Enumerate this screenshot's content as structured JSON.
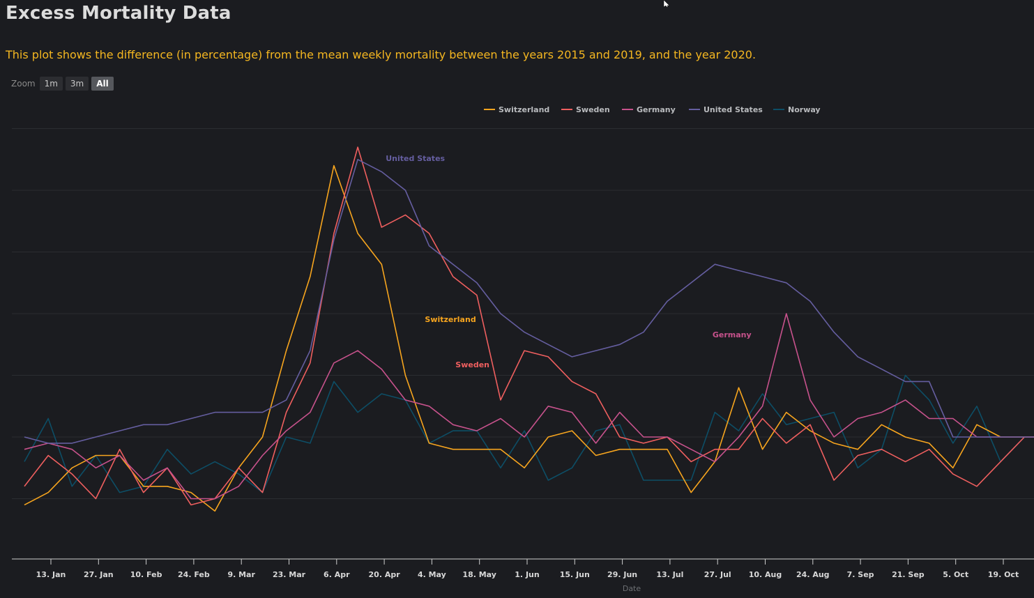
{
  "header": {
    "title": "Excess Mortality Data",
    "subtitle": "This plot shows the difference (in percentage) from the mean weekly mortality between the years 2015 and 2019, and the year 2020."
  },
  "zoom": {
    "label": "Zoom",
    "buttons": [
      {
        "label": "1m",
        "active": false
      },
      {
        "label": "3m",
        "active": false
      },
      {
        "label": "All",
        "active": true
      }
    ]
  },
  "chart_data": {
    "type": "line",
    "title": "",
    "xlabel": "Date",
    "ylabel": "",
    "x_tick_labels": [
      "13. Jan",
      "27. Jan",
      "10. Feb",
      "24. Feb",
      "9. Mar",
      "23. Mar",
      "6. Apr",
      "20. Apr",
      "4. May",
      "18. May",
      "1. Jun",
      "15. Jun",
      "29. Jun",
      "13. Jul",
      "27. Jul",
      "10. Aug",
      "24. Aug",
      "7. Sep",
      "21. Sep",
      "5. Oct",
      "19. Oct"
    ],
    "grid": true,
    "legend": "top-center",
    "series": [
      {
        "name": "Switzerland",
        "color": "#f7a51e",
        "label": "Switzerland",
        "values": [
          -11,
          -9,
          -5,
          -3,
          -3,
          -8,
          -8,
          -9,
          -12,
          -5,
          0,
          14,
          26,
          44,
          33,
          28,
          10,
          -1,
          -2,
          -2,
          -2,
          -5,
          0,
          1,
          -3,
          -2,
          -2,
          -2,
          -9,
          -4,
          8,
          -2,
          4,
          1,
          -1,
          -2,
          2,
          0,
          -1,
          -5,
          2,
          0,
          0,
          0
        ]
      },
      {
        "name": "Sweden",
        "color": "#ef5f5f",
        "label": "Sweden",
        "values": [
          -8,
          -3,
          -6,
          -10,
          -2,
          -9,
          -5,
          -11,
          -10,
          -5,
          -9,
          4,
          12,
          33,
          47,
          34,
          36,
          33,
          26,
          23,
          6,
          14,
          13,
          9,
          7,
          0,
          -1,
          0,
          -4,
          -2,
          -2,
          3,
          -1,
          2,
          -7,
          -3,
          -2,
          -4,
          -2,
          -6,
          -8,
          -4,
          0,
          0
        ]
      },
      {
        "name": "Germany",
        "color": "#c7528c",
        "label": "Germany",
        "values": [
          -2,
          -1,
          -2,
          -5,
          -3,
          -7,
          -5,
          -10,
          -10,
          -8,
          -3,
          1,
          4,
          12,
          14,
          11,
          6,
          5,
          2,
          1,
          3,
          0,
          5,
          4,
          -1,
          4,
          0,
          0,
          -2,
          -4,
          0,
          5,
          20,
          6,
          0,
          3,
          4,
          6,
          3,
          3,
          0,
          0,
          0,
          0
        ]
      },
      {
        "name": "United States",
        "color": "#655ea0",
        "label": "United States",
        "values": [
          0,
          -1,
          -1,
          0,
          1,
          2,
          2,
          3,
          4,
          4,
          4,
          6,
          14,
          32,
          45,
          43,
          40,
          31,
          28,
          25,
          20,
          17,
          15,
          13,
          14,
          15,
          17,
          22,
          25,
          28,
          27,
          26,
          25,
          22,
          17,
          13,
          11,
          9,
          9,
          0,
          0,
          0,
          0,
          0
        ]
      },
      {
        "name": "Norway",
        "color": "#0d4e66",
        "label": "",
        "values": [
          -4,
          3,
          -8,
          -3,
          -9,
          -8,
          -2,
          -6,
          -4,
          -6,
          -9,
          0,
          -1,
          9,
          4,
          7,
          6,
          -1,
          1,
          1,
          -5,
          1,
          -7,
          -5,
          1,
          2,
          -7,
          -7,
          -7,
          4,
          1,
          7,
          2,
          3,
          4,
          -5,
          -2,
          10,
          6,
          -1,
          5,
          -4,
          0,
          0
        ]
      }
    ]
  }
}
